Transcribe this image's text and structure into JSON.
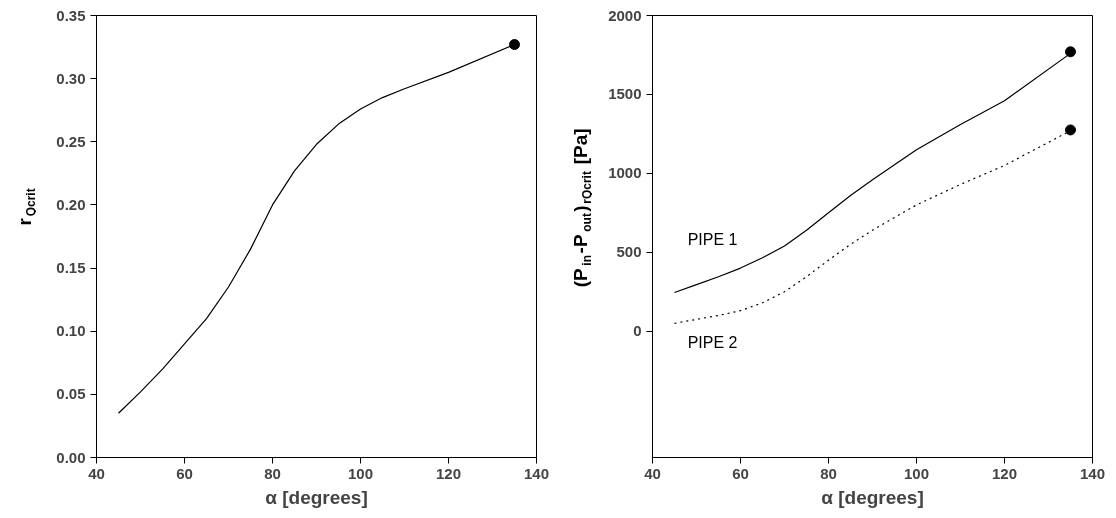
{
  "chart_data": [
    {
      "type": "line",
      "xlabel": "α [degrees]",
      "ylabel": "r$_{Qcrit}$",
      "xlim": [
        40,
        140
      ],
      "xticks": [
        40,
        60,
        80,
        100,
        120,
        140
      ],
      "ylim": [
        0,
        0.35
      ],
      "yticks": [
        {
          "value": 0,
          "label": "0.00"
        },
        {
          "value": 0.05,
          "label": "0.05"
        },
        {
          "value": 0.1,
          "label": "0.10"
        },
        {
          "value": 0.15,
          "label": "0.15"
        },
        {
          "value": 0.2,
          "label": "0.20"
        },
        {
          "value": 0.25,
          "label": "0.25"
        },
        {
          "value": 0.3,
          "label": "0.30"
        },
        {
          "value": 0.35,
          "label": "0.35"
        }
      ],
      "grid": false,
      "legend": false,
      "series": [
        {
          "color": "#000000",
          "line_style": "solid",
          "x": [
            45,
            50,
            55,
            60,
            65,
            70,
            75,
            80,
            85,
            90,
            95,
            100,
            105,
            110,
            120,
            135
          ],
          "values": [
            0.035,
            0.052,
            0.07,
            0.09,
            0.11,
            0.135,
            0.165,
            0.2,
            0.227,
            0.248,
            0.264,
            0.276,
            0.285,
            0.292,
            0.305,
            0.327
          ]
        },
        {
          "type": "scatter",
          "color": "#000000",
          "marker": "circle",
          "x": [
            135
          ],
          "values": [
            0.327
          ]
        }
      ]
    },
    {
      "type": "line",
      "xlabel": "α [degrees]",
      "ylabel": "(P$_{in}$-P$_{out}$)$_{rQcrit}$ [Pa]",
      "xlim": [
        40,
        140
      ],
      "xticks": [
        40,
        60,
        80,
        100,
        120,
        140
      ],
      "ylim": [
        -800,
        2000
      ],
      "yticks": [
        0,
        500,
        1000,
        1500,
        2000
      ],
      "grid": false,
      "legend": false,
      "series": [
        {
          "name": "PIPE 1",
          "color": "#000000",
          "line_style": "solid",
          "x": [
            45,
            50,
            55,
            60,
            65,
            70,
            75,
            80,
            85,
            90,
            100,
            110,
            120,
            135
          ],
          "values": [
            245,
            295,
            345,
            400,
            465,
            540,
            640,
            750,
            860,
            960,
            1150,
            1310,
            1460,
            1760
          ]
        },
        {
          "name": "PIPE 2",
          "color": "#000000",
          "line_style": "dotted",
          "x": [
            45,
            50,
            55,
            60,
            65,
            70,
            75,
            80,
            85,
            90,
            100,
            110,
            120,
            135
          ],
          "values": [
            50,
            75,
            100,
            130,
            180,
            250,
            345,
            450,
            550,
            640,
            800,
            930,
            1050,
            1270
          ]
        },
        {
          "type": "scatter",
          "color": "#000000",
          "marker": "circle",
          "x": [
            135,
            135
          ],
          "values": [
            1770,
            1275
          ]
        }
      ]
    }
  ]
}
